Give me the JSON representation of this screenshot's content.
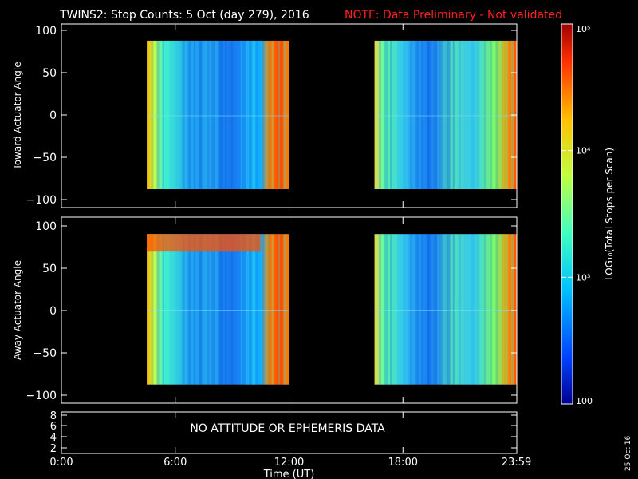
{
  "header": {
    "title": "TWINS2: Stop Counts:  5 Oct (day 279), 2016",
    "note": "NOTE: Data Preliminary - Not validated"
  },
  "colors": {
    "background": "#000000",
    "foreground": "#ffffff",
    "note": "#ff2020"
  },
  "colorbar": {
    "label": "LOG₁₀(Total Stops per Scan)",
    "scale": "log",
    "range": [
      100,
      100000
    ],
    "ticks": [
      {
        "value": 100000,
        "label": "10⁵"
      },
      {
        "value": 10000,
        "label": "10⁴"
      },
      {
        "value": 1000,
        "label": "10³"
      },
      {
        "value": 100,
        "label": "100"
      }
    ],
    "colors": [
      "#000090",
      "#0040ff",
      "#00c0ff",
      "#40ffc0",
      "#c0ff40",
      "#ffc000",
      "#ff3000",
      "#a00000"
    ]
  },
  "corner_stamp": "25 Oct 16",
  "chart_data": [
    {
      "type": "heatmap",
      "ylabel": "Toward Actuator Angle",
      "ylim": [
        -110,
        110
      ],
      "yticks": [
        "100",
        "50",
        "0",
        "−50",
        "−100"
      ],
      "xlim": [
        0,
        24
      ],
      "data_blocks": [
        {
          "x": [
            4.5,
            12.0
          ],
          "y": [
            -88,
            90
          ]
        },
        {
          "x": [
            16.5,
            24.0
          ],
          "y": [
            -88,
            90
          ]
        }
      ]
    },
    {
      "type": "heatmap",
      "ylabel": "Away Actuator Angle",
      "ylim": [
        -110,
        110
      ],
      "yticks": [
        "100",
        "50",
        "0",
        "−50",
        "−100"
      ],
      "xlim": [
        0,
        24
      ],
      "data_blocks": [
        {
          "x": [
            4.5,
            12.0
          ],
          "y": [
            -88,
            90
          ]
        },
        {
          "x": [
            16.5,
            24.0
          ],
          "y": [
            -88,
            90
          ]
        }
      ]
    },
    {
      "type": "line",
      "yticks": [
        "8",
        "6",
        "4",
        "2"
      ],
      "ylim": [
        1.5,
        8.5
      ],
      "xlim": [
        0,
        24
      ],
      "message": "NO ATTITUDE OR EPHEMERIS DATA",
      "xtick_labels": [
        "0:00",
        "6:00",
        "12:00",
        "18:00",
        "23:59"
      ],
      "xlabel": "Time (UT)"
    }
  ]
}
